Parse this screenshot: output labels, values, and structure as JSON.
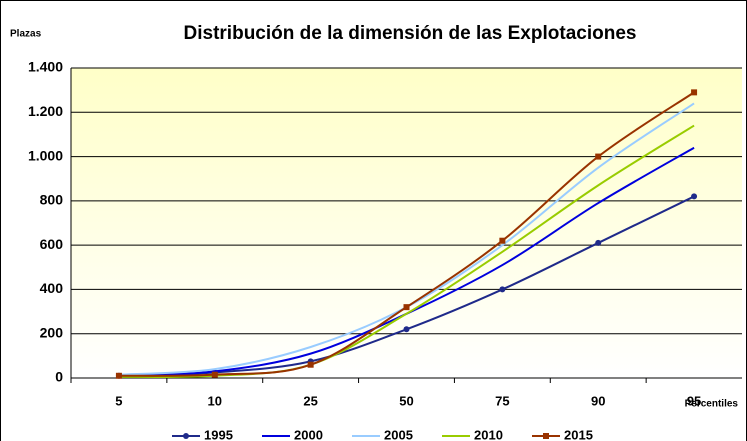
{
  "chart_data": {
    "type": "line",
    "title": "Distribución de la dimensión de las Explotaciones",
    "y_label": "Plazas",
    "x_label": "Percentiles",
    "categories": [
      "5",
      "10",
      "25",
      "50",
      "75",
      "90",
      "95"
    ],
    "series": [
      {
        "name": "1995",
        "color": "#1f2a8a",
        "marker": "circle",
        "values": [
          10,
          25,
          75,
          220,
          400,
          610,
          820
        ]
      },
      {
        "name": "2000",
        "color": "#0000dd",
        "values": [
          10,
          30,
          110,
          290,
          510,
          790,
          1040
        ]
      },
      {
        "name": "2005",
        "color": "#99ccff",
        "values": [
          15,
          40,
          140,
          320,
          600,
          950,
          1240
        ]
      },
      {
        "name": "2010",
        "color": "#99cc00",
        "values": [
          5,
          10,
          60,
          290,
          570,
          870,
          1140
        ]
      },
      {
        "name": "2015",
        "color": "#993300",
        "marker": "square",
        "values": [
          10,
          15,
          60,
          320,
          620,
          1000,
          1290
        ]
      }
    ],
    "ylim": [
      0,
      1400
    ],
    "yticks": [
      0,
      200,
      400,
      600,
      800,
      {
        "value": 1000,
        "label": "1.000"
      },
      {
        "value": 1200,
        "label": "1.200"
      },
      {
        "value": 1400,
        "label": "1.400"
      }
    ],
    "grid": true,
    "legend": "bottom"
  }
}
